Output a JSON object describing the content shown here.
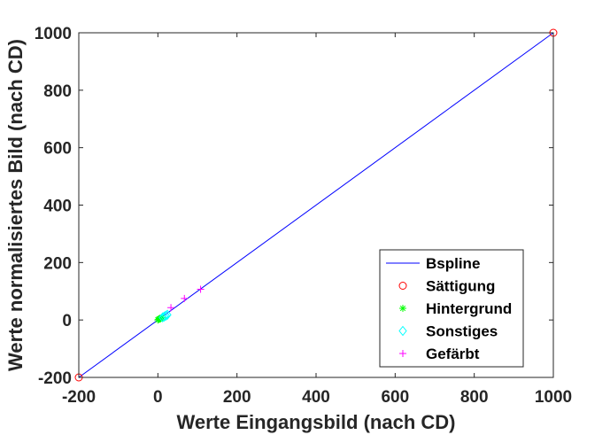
{
  "chart_data": {
    "type": "line",
    "xlabel": "Werte Eingangsbild (nach CD)",
    "ylabel": "Werte normalisiertes Bild (nach CD)",
    "xlim": [
      -200,
      1000
    ],
    "ylim": [
      -200,
      1000
    ],
    "xticks": [
      -200,
      0,
      200,
      400,
      600,
      800,
      1000
    ],
    "yticks": [
      -200,
      0,
      200,
      400,
      600,
      800,
      1000
    ],
    "xtick_labels": [
      "-200",
      "0",
      "200",
      "400",
      "600",
      "800",
      "1000"
    ],
    "ytick_labels": [
      "-200",
      "0",
      "200",
      "400",
      "600",
      "800",
      "1000"
    ],
    "grid": false,
    "legend_position": "bottom-right",
    "series": [
      {
        "name": "Bspline",
        "kind": "line",
        "color": "#0000ff",
        "x": [
          -200,
          1000
        ],
        "y": [
          -200,
          1000
        ]
      },
      {
        "name": "Sättigung",
        "kind": "marker",
        "marker": "circle",
        "color": "#ff0000",
        "x": [
          -200,
          1000
        ],
        "y": [
          -200,
          1000
        ]
      },
      {
        "name": "Hintergrund",
        "kind": "marker",
        "marker": "asterisk",
        "color": "#00ff00",
        "x": [
          0,
          2,
          4,
          6,
          8,
          10
        ],
        "y": [
          0,
          2,
          4,
          5,
          7,
          9
        ]
      },
      {
        "name": "Sonstiges",
        "kind": "marker",
        "marker": "diamond",
        "color": "#00ffff",
        "x": [
          12,
          16,
          20,
          24
        ],
        "y": [
          9,
          12,
          15,
          18
        ]
      },
      {
        "name": "Gefärbt",
        "kind": "marker",
        "marker": "plus",
        "color": "#ff00ff",
        "x": [
          33,
          67,
          108
        ],
        "y": [
          43,
          75,
          107
        ]
      }
    ]
  }
}
